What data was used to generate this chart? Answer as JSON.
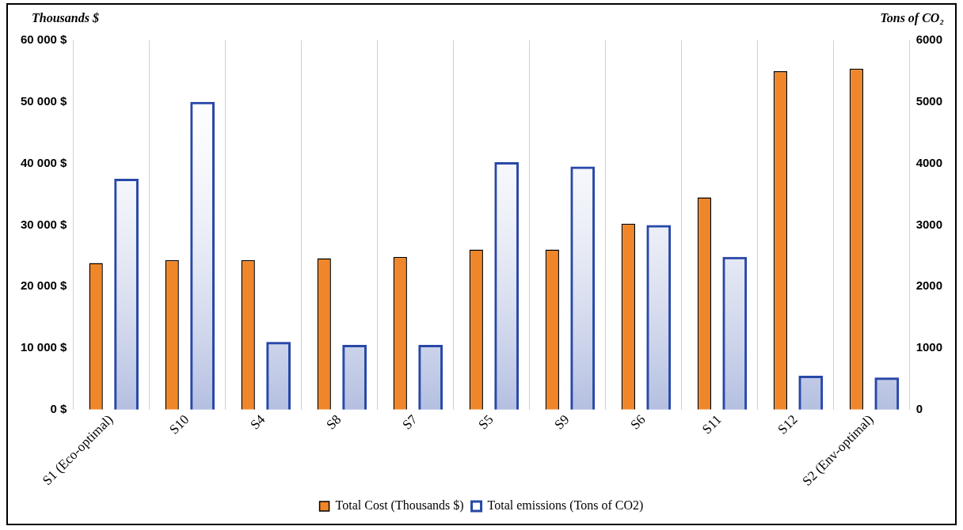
{
  "chart_data": {
    "type": "bar",
    "ylabel": "Thousands $",
    "y2label": "Tons of CO₂",
    "categories": [
      "S1 (Eco-optimal)",
      "S10",
      "S4",
      "S8",
      "S7",
      "S5",
      "S9",
      "S6",
      "S11",
      "S12",
      "S2 (Env-optimal)"
    ],
    "series": [
      {
        "name": "Total Cost (Thousands $)",
        "color": "#f0862a",
        "values": [
          23800,
          24300,
          24300,
          24600,
          24800,
          26000,
          26000,
          30200,
          34500,
          55000,
          55400
        ]
      },
      {
        "name": "Total emissions (Tons of CO2)",
        "color": "#2848a8",
        "axis": "y2",
        "values": [
          3750,
          5000,
          1100,
          1050,
          1050,
          4020,
          3950,
          3000,
          2480,
          550,
          520
        ]
      }
    ],
    "ylim": [
      0,
      60000
    ],
    "yticks": [
      {
        "value": 0,
        "label": "0 $"
      },
      {
        "value": 10000,
        "label": "10 000 $"
      },
      {
        "value": 20000,
        "label": "20 000 $"
      },
      {
        "value": 30000,
        "label": "30 000 $"
      },
      {
        "value": 40000,
        "label": "40 000 $"
      },
      {
        "value": 50000,
        "label": "50 000 $"
      },
      {
        "value": 60000,
        "label": "60 000 $"
      }
    ],
    "y2lim": [
      0,
      6000
    ],
    "y2ticks": [
      0,
      1000,
      2000,
      3000,
      4000,
      5000,
      6000
    ],
    "grid": "x",
    "legend": "bottom"
  }
}
